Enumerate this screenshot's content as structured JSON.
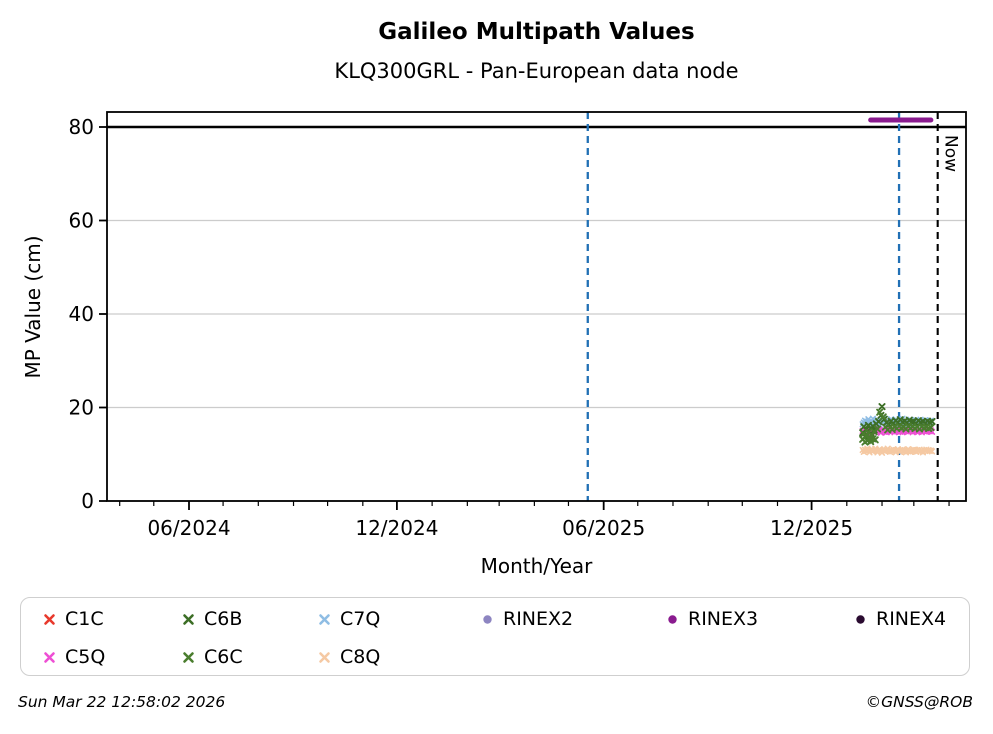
{
  "title": "Galileo Multipath Values",
  "subtitle": "KLQ300GRL - Pan-European data node",
  "axes": {
    "xlabel": "Month/Year",
    "ylabel": "MP Value (cm)",
    "now_label": "Now"
  },
  "footer": {
    "timestamp": "Sun Mar 22 12:58:02 2026",
    "credit": "©GNSS@ROB"
  },
  "colors": {
    "grid": "#cccccc",
    "spine": "#000000",
    "vline_event": "#2170b5",
    "vline_now": "#000000",
    "cap_line": "#000000"
  },
  "legend": {
    "items": [
      {
        "label": "C1C",
        "color": "#e8392c",
        "marker": "x",
        "row": 0,
        "col": 0
      },
      {
        "label": "C6B",
        "color": "#3c6e26",
        "marker": "x",
        "row": 0,
        "col": 1
      },
      {
        "label": "C7Q",
        "color": "#8fbde4",
        "marker": "x",
        "row": 0,
        "col": 2
      },
      {
        "label": "RINEX2",
        "color": "#8d85c1",
        "marker": "circle",
        "row": 0,
        "col": 3
      },
      {
        "label": "RINEX3",
        "color": "#8a1b8f",
        "marker": "circle",
        "row": 0,
        "col": 4
      },
      {
        "label": "RINEX4",
        "color": "#2a0b30",
        "marker": "circle",
        "row": 0,
        "col": 5
      },
      {
        "label": "C5Q",
        "color": "#ee4fd4",
        "marker": "x",
        "row": 1,
        "col": 0
      },
      {
        "label": "C6C",
        "color": "#4a7d2e",
        "marker": "x",
        "row": 1,
        "col": 1
      },
      {
        "label": "C8Q",
        "color": "#f5c9a3",
        "marker": "x",
        "row": 1,
        "col": 2
      }
    ]
  },
  "chart_data": {
    "type": "scatter",
    "title": "Galileo Multipath Values",
    "subtitle": "KLQ300GRL - Pan-European data node",
    "xlabel": "Month/Year",
    "ylabel": "MP Value (cm)",
    "ylim": [
      0,
      83.2
    ],
    "yticks": [
      0,
      20,
      40,
      60,
      80
    ],
    "grid": "horizontal",
    "x_major_ticks": [
      {
        "label": "06/2024",
        "date": "2024-06-01"
      },
      {
        "label": "12/2024",
        "date": "2024-12-01"
      },
      {
        "label": "06/2025",
        "date": "2025-06-01"
      },
      {
        "label": "12/2025",
        "date": "2025-12-01"
      }
    ],
    "x_minor_tick_range": {
      "first": "2024-04-01",
      "last": "2026-04-01",
      "interval_months": 1
    },
    "cap_line": {
      "y": 80
    },
    "vlines": [
      {
        "date": "2025-05-18",
        "style": "dashed",
        "role": "event",
        "label": ""
      },
      {
        "date": "2026-02-16",
        "style": "dashed",
        "role": "event",
        "label": ""
      },
      {
        "date": "2026-03-22",
        "style": "dashed",
        "role": "now",
        "label": "Now"
      }
    ],
    "daily_start_date": "2026-01-15",
    "series": [
      {
        "name": "C1C",
        "color": "#e8392c",
        "marker": "x",
        "values": []
      },
      {
        "name": "C7Q",
        "color": "#8fbde4",
        "marker": "x",
        "cadence_days": 1,
        "values": [
          16.4,
          16.8,
          17.2,
          16.6,
          17.0,
          17.5,
          16.9,
          16.3,
          17.1,
          17.6,
          16.8,
          16.5,
          17.0,
          17.4,
          16.7,
          16.2,
          16.9,
          17.3,
          17.8,
          17.0,
          16.6,
          17.2,
          16.8,
          16.4,
          17.0,
          17.5,
          16.9,
          16.5,
          17.1,
          16.7,
          17.3,
          16.9,
          16.4,
          16.8,
          17.2,
          17.6,
          17.0,
          16.6,
          17.1,
          16.8,
          16.3,
          16.9,
          17.4,
          17.0,
          16.6,
          17.2,
          16.8,
          17.3,
          16.9,
          16.5,
          17.0,
          17.4,
          16.8,
          16.4,
          17.0,
          17.3,
          16.9,
          16.6,
          17.1,
          16.8,
          17.2,
          16.9
        ]
      },
      {
        "name": "C5Q",
        "color": "#ee4fd4",
        "marker": "x",
        "cadence_days": 1,
        "values": [
          15.0,
          14.7,
          15.2,
          14.9,
          15.3,
          14.8,
          15.1,
          14.6,
          15.0,
          15.3,
          14.9,
          15.2,
          14.8,
          15.1,
          15.4,
          14.9,
          14.6,
          15.0,
          15.2,
          14.8,
          15.1,
          14.7,
          15.3,
          15.0,
          14.8,
          15.2,
          14.9,
          15.1,
          14.7,
          15.0,
          15.3,
          14.9,
          15.2,
          14.8,
          15.1,
          14.7,
          15.0,
          15.2,
          14.9,
          15.3,
          14.8,
          15.1,
          14.9,
          15.2,
          14.7,
          15.0,
          15.3,
          14.9,
          15.1,
          14.8,
          15.2,
          15.0,
          14.7,
          15.1,
          14.9,
          15.2,
          14.8,
          15.0,
          15.3,
          14.9,
          15.1,
          14.8
        ]
      },
      {
        "name": "C8Q",
        "color": "#f5c9a3",
        "marker": "x",
        "cadence_days": 1,
        "values": [
          10.9,
          10.5,
          11.0,
          10.7,
          11.2,
          10.8,
          10.4,
          10.9,
          11.1,
          10.6,
          10.8,
          11.2,
          10.7,
          10.4,
          10.9,
          11.1,
          10.6,
          10.3,
          10.8,
          11.0,
          10.6,
          10.9,
          11.2,
          10.7,
          10.5,
          10.9,
          10.6,
          11.0,
          10.8,
          10.4,
          10.9,
          11.1,
          10.7,
          10.5,
          10.8,
          11.0,
          10.6,
          10.9,
          10.4,
          10.8,
          11.1,
          10.7,
          10.5,
          10.9,
          10.6,
          11.0,
          10.8,
          10.5,
          10.9,
          10.7,
          11.0,
          10.6,
          10.8,
          10.4,
          10.9,
          10.7,
          11.0,
          10.6,
          10.9,
          10.7,
          10.8,
          10.6
        ]
      },
      {
        "name": "C6B",
        "color": "#3c6e26",
        "marker": "x",
        "day_value_pairs": [
          [
            0,
            14.6
          ],
          [
            1,
            15.9
          ],
          [
            2,
            13.8
          ],
          [
            3,
            15.3
          ],
          [
            4,
            14.1
          ],
          [
            5,
            16.2
          ],
          [
            6,
            13.4
          ],
          [
            7,
            15.6
          ],
          [
            8,
            14.3
          ],
          [
            9,
            16.0
          ],
          [
            10,
            15.2
          ],
          [
            12,
            16.5
          ],
          [
            14,
            17.0
          ],
          [
            16,
            18.3
          ],
          [
            17,
            20.2
          ],
          [
            19,
            17.5
          ],
          [
            21,
            16.8
          ],
          [
            23,
            16.3
          ],
          [
            25,
            17.1
          ],
          [
            27,
            16.6
          ],
          [
            29,
            17.2
          ],
          [
            31,
            16.8
          ],
          [
            33,
            17.4
          ],
          [
            35,
            16.9
          ],
          [
            37,
            17.1
          ],
          [
            39,
            16.7
          ],
          [
            41,
            17.3
          ],
          [
            43,
            16.9
          ],
          [
            45,
            17.0
          ],
          [
            47,
            16.6
          ],
          [
            49,
            17.2
          ],
          [
            51,
            16.8
          ],
          [
            53,
            17.0
          ],
          [
            55,
            16.7
          ],
          [
            57,
            17.1
          ],
          [
            59,
            16.8
          ],
          [
            61,
            17.0
          ]
        ]
      },
      {
        "name": "C6C",
        "color": "#4a7d2e",
        "marker": "x",
        "day_value_pairs": [
          [
            0,
            13.2
          ],
          [
            1,
            14.4
          ],
          [
            2,
            12.6
          ],
          [
            3,
            13.9
          ],
          [
            4,
            12.9
          ],
          [
            5,
            14.7
          ],
          [
            6,
            13.5
          ],
          [
            7,
            12.7
          ],
          [
            8,
            14.0
          ],
          [
            9,
            13.3
          ],
          [
            10,
            14.8
          ],
          [
            11,
            13.1
          ],
          [
            13,
            15.4
          ],
          [
            15,
            19.0
          ],
          [
            18,
            18.0
          ],
          [
            20,
            15.8
          ],
          [
            22,
            15.2
          ],
          [
            24,
            15.7
          ],
          [
            26,
            15.3
          ],
          [
            28,
            15.9
          ],
          [
            30,
            15.5
          ],
          [
            32,
            16.0
          ],
          [
            34,
            15.6
          ],
          [
            36,
            15.8
          ],
          [
            38,
            15.4
          ],
          [
            40,
            16.0
          ],
          [
            42,
            15.6
          ],
          [
            44,
            15.9
          ],
          [
            46,
            15.5
          ],
          [
            48,
            15.8
          ],
          [
            50,
            15.4
          ],
          [
            52,
            15.9
          ],
          [
            54,
            15.6
          ],
          [
            56,
            15.8
          ],
          [
            58,
            15.5
          ],
          [
            60,
            15.7
          ]
        ]
      },
      {
        "name": "RINEX2",
        "color": "#8d85c1",
        "marker": "circle",
        "values": []
      },
      {
        "name": "RINEX3",
        "color": "#8a1b8f",
        "marker": "segment",
        "segment": {
          "start": "2026-01-22",
          "end": "2026-03-16",
          "value": 81.5
        }
      },
      {
        "name": "RINEX4",
        "color": "#2a0b30",
        "marker": "circle",
        "values": []
      }
    ]
  }
}
